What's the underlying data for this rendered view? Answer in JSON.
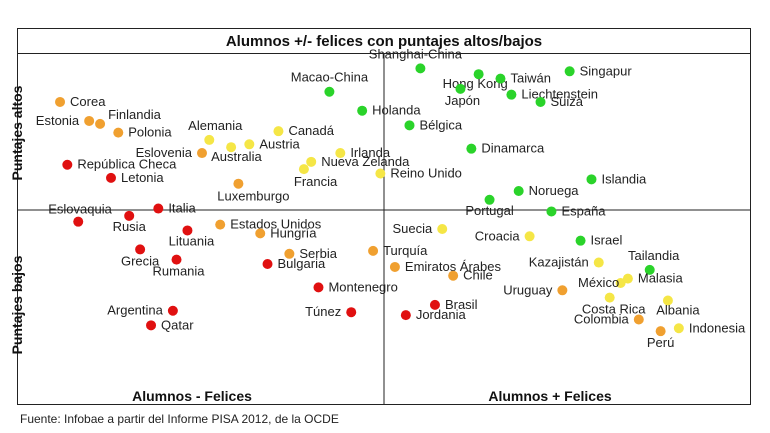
{
  "chart_data": {
    "type": "scatter",
    "title": "Alumnos +/- felices con puntajes altos/bajos",
    "xlabel_left": "Alumnos - Felices",
    "xlabel_right": "Alumnos + Felices",
    "ylabel_top": "Puntajes altos",
    "ylabel_bottom": "Puntajes bajos",
    "xlim": [
      0,
      100
    ],
    "ylim": [
      0,
      100
    ],
    "quadrant_split": {
      "x": 50,
      "y": 50
    },
    "colors": {
      "red": "#e01010",
      "orange": "#f0a030",
      "yellow": "#f5e646",
      "green": "#2ad32a"
    },
    "points": [
      {
        "name": "Corea",
        "x": 5.5,
        "y": 87,
        "color": "orange"
      },
      {
        "name": "Estonia",
        "x": 9.5,
        "y": 80.5,
        "color": "orange"
      },
      {
        "name": "Finlandia",
        "x": 11,
        "y": 79.5,
        "color": "orange"
      },
      {
        "name": "Polonia",
        "x": 13.5,
        "y": 76.5,
        "color": "orange"
      },
      {
        "name": "Alemania",
        "x": 26,
        "y": 74,
        "color": "yellow"
      },
      {
        "name": "Canadá",
        "x": 35.5,
        "y": 77,
        "color": "yellow"
      },
      {
        "name": "Austria",
        "x": 31.5,
        "y": 72.5,
        "color": "yellow"
      },
      {
        "name": "Eslovenia",
        "x": 25,
        "y": 69.5,
        "color": "orange"
      },
      {
        "name": "Australia",
        "x": 29,
        "y": 71.5,
        "color": "yellow"
      },
      {
        "name": "República Checa",
        "x": 6.5,
        "y": 65.5,
        "color": "red"
      },
      {
        "name": "Letonia",
        "x": 12.5,
        "y": 61,
        "color": "red"
      },
      {
        "name": "Eslovaquia",
        "x": 8,
        "y": 46,
        "color": "red"
      },
      {
        "name": "Italia",
        "x": 19,
        "y": 50.5,
        "color": "red"
      },
      {
        "name": "Rusia",
        "x": 15,
        "y": 48,
        "color": "red"
      },
      {
        "name": "Luxemburgo",
        "x": 30,
        "y": 59,
        "color": "orange"
      },
      {
        "name": "Lituania",
        "x": 23,
        "y": 43,
        "color": "red"
      },
      {
        "name": "Estados Unidos",
        "x": 27.5,
        "y": 45,
        "color": "orange"
      },
      {
        "name": "Hungría",
        "x": 33,
        "y": 42,
        "color": "orange"
      },
      {
        "name": "Grecia",
        "x": 16.5,
        "y": 36.5,
        "color": "red"
      },
      {
        "name": "Rumania",
        "x": 21.5,
        "y": 33,
        "color": "red"
      },
      {
        "name": "Serbia",
        "x": 37,
        "y": 35,
        "color": "orange"
      },
      {
        "name": "Bulgaria",
        "x": 34,
        "y": 31.5,
        "color": "red"
      },
      {
        "name": "Argentina",
        "x": 21,
        "y": 15.5,
        "color": "red"
      },
      {
        "name": "Qatar",
        "x": 18,
        "y": 10.5,
        "color": "red"
      },
      {
        "name": "Montenegro",
        "x": 41,
        "y": 23.5,
        "color": "red"
      },
      {
        "name": "Túnez",
        "x": 45.5,
        "y": 15,
        "color": "red"
      },
      {
        "name": "Macao-China",
        "x": 42.5,
        "y": 90.5,
        "color": "green"
      },
      {
        "name": "Holanda",
        "x": 47,
        "y": 84,
        "color": "green"
      },
      {
        "name": "Irlanda",
        "x": 44,
        "y": 69.5,
        "color": "yellow"
      },
      {
        "name": "Nueva Zelanda",
        "x": 40,
        "y": 66.5,
        "color": "yellow"
      },
      {
        "name": "Francia",
        "x": 39,
        "y": 64,
        "color": "yellow"
      },
      {
        "name": "Reino Unido",
        "x": 49.5,
        "y": 62.5,
        "color": "yellow"
      },
      {
        "name": "Shanghai-China",
        "x": 55,
        "y": 98.5,
        "color": "green"
      },
      {
        "name": "Hong Kong",
        "x": 63,
        "y": 96.5,
        "color": "green"
      },
      {
        "name": "Taiwán",
        "x": 66,
        "y": 95,
        "color": "green"
      },
      {
        "name": "Singapur",
        "x": 75.5,
        "y": 97.5,
        "color": "green"
      },
      {
        "name": "Japón",
        "x": 60.5,
        "y": 91.5,
        "color": "green"
      },
      {
        "name": "Liechtenstein",
        "x": 67.5,
        "y": 89.5,
        "color": "green"
      },
      {
        "name": "Suiza",
        "x": 71.5,
        "y": 87,
        "color": "green"
      },
      {
        "name": "Bélgica",
        "x": 53.5,
        "y": 79,
        "color": "green"
      },
      {
        "name": "Dinamarca",
        "x": 62,
        "y": 71,
        "color": "green"
      },
      {
        "name": "Islandia",
        "x": 78.5,
        "y": 60.5,
        "color": "green"
      },
      {
        "name": "Noruega",
        "x": 68.5,
        "y": 56.5,
        "color": "green"
      },
      {
        "name": "Portugal",
        "x": 64.5,
        "y": 53.5,
        "color": "green"
      },
      {
        "name": "España",
        "x": 73,
        "y": 49.5,
        "color": "green"
      },
      {
        "name": "Suecia",
        "x": 58,
        "y": 43.5,
        "color": "yellow"
      },
      {
        "name": "Croacia",
        "x": 70,
        "y": 41,
        "color": "yellow"
      },
      {
        "name": "Israel",
        "x": 77,
        "y": 39.5,
        "color": "green"
      },
      {
        "name": "Turquía",
        "x": 48.5,
        "y": 36,
        "color": "orange"
      },
      {
        "name": "Kazajistán",
        "x": 79.5,
        "y": 32,
        "color": "yellow"
      },
      {
        "name": "Tailandia",
        "x": 86.5,
        "y": 29.5,
        "color": "green"
      },
      {
        "name": "Emiratos Árabes",
        "x": 51.5,
        "y": 30.5,
        "color": "orange"
      },
      {
        "name": "Chile",
        "x": 59.5,
        "y": 27.5,
        "color": "orange"
      },
      {
        "name": "México",
        "x": 82.5,
        "y": 25,
        "color": "yellow"
      },
      {
        "name": "Malasia",
        "x": 83.5,
        "y": 26.5,
        "color": "yellow"
      },
      {
        "name": "Uruguay",
        "x": 74.5,
        "y": 22.5,
        "color": "orange"
      },
      {
        "name": "Costa Rica",
        "x": 81,
        "y": 20,
        "color": "yellow"
      },
      {
        "name": "Albania",
        "x": 89,
        "y": 19,
        "color": "yellow"
      },
      {
        "name": "Brasil",
        "x": 57,
        "y": 17.5,
        "color": "red"
      },
      {
        "name": "Jordania",
        "x": 53,
        "y": 14,
        "color": "red"
      },
      {
        "name": "Colombia",
        "x": 85,
        "y": 12.5,
        "color": "orange"
      },
      {
        "name": "Indonesia",
        "x": 90.5,
        "y": 9.5,
        "color": "yellow"
      },
      {
        "name": "Perú",
        "x": 88,
        "y": 8.5,
        "color": "orange"
      }
    ]
  },
  "source": "Fuente: Infobae a partir del Informe PISA 2012, de la OCDE"
}
